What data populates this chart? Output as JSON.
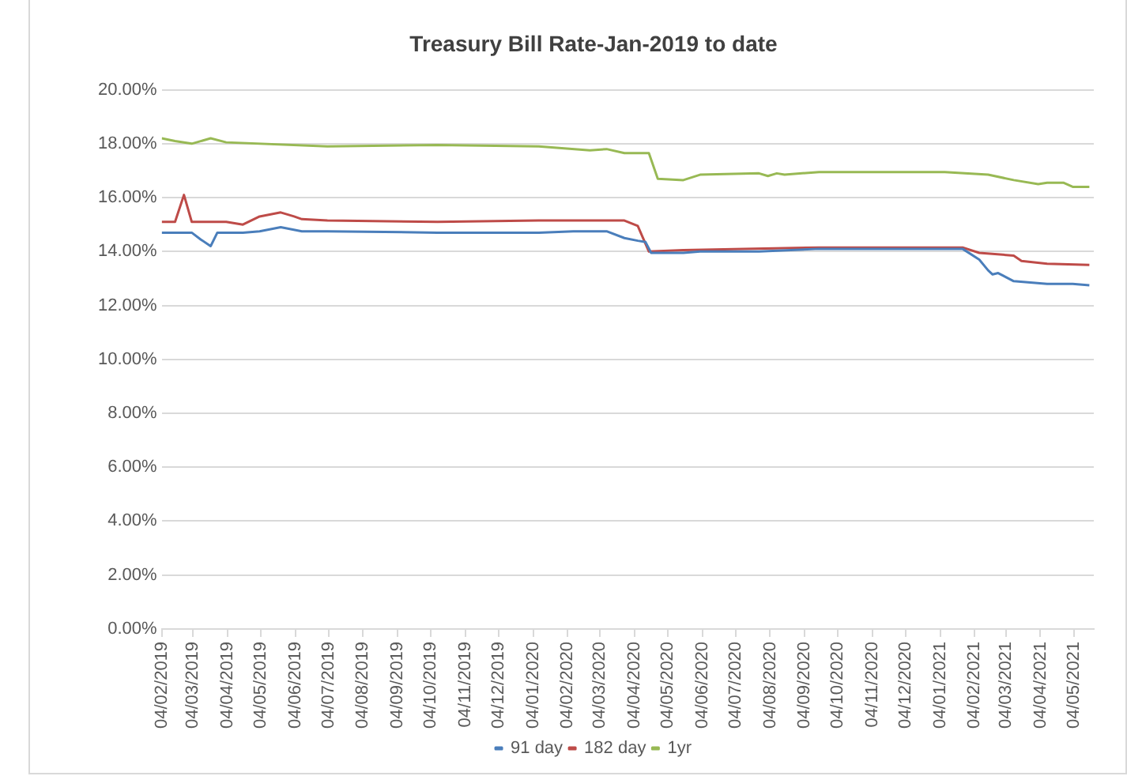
{
  "chart_data": {
    "type": "line",
    "title": "Treasury Bill Rate-Jan-2019 to date",
    "legend": "bottom",
    "grid": "y",
    "marker": "none",
    "line_style": "solid",
    "xlim": [
      "2019-02-04",
      "2021-05-22"
    ],
    "xticks": [
      {
        "value": "2019-02-04",
        "label": "04/02/2019"
      },
      {
        "value": "2019-03-04",
        "label": "04/03/2019"
      },
      {
        "value": "2019-04-04",
        "label": "04/04/2019"
      },
      {
        "value": "2019-05-04",
        "label": "04/05/2019"
      },
      {
        "value": "2019-06-04",
        "label": "04/06/2019"
      },
      {
        "value": "2019-07-04",
        "label": "04/07/2019"
      },
      {
        "value": "2019-08-04",
        "label": "04/08/2019"
      },
      {
        "value": "2019-09-04",
        "label": "04/09/2019"
      },
      {
        "value": "2019-10-04",
        "label": "04/10/2019"
      },
      {
        "value": "2019-11-04",
        "label": "04/11/2019"
      },
      {
        "value": "2019-12-04",
        "label": "04/12/2019"
      },
      {
        "value": "2020-01-04",
        "label": "04/01/2020"
      },
      {
        "value": "2020-02-04",
        "label": "04/02/2020"
      },
      {
        "value": "2020-03-04",
        "label": "04/03/2020"
      },
      {
        "value": "2020-04-04",
        "label": "04/04/2020"
      },
      {
        "value": "2020-05-04",
        "label": "04/05/2020"
      },
      {
        "value": "2020-06-04",
        "label": "04/06/2020"
      },
      {
        "value": "2020-07-04",
        "label": "04/07/2020"
      },
      {
        "value": "2020-08-04",
        "label": "04/08/2020"
      },
      {
        "value": "2020-09-04",
        "label": "04/09/2020"
      },
      {
        "value": "2020-10-04",
        "label": "04/10/2020"
      },
      {
        "value": "2020-11-04",
        "label": "04/11/2020"
      },
      {
        "value": "2020-12-04",
        "label": "04/12/2020"
      },
      {
        "value": "2021-01-04",
        "label": "04/01/2021"
      },
      {
        "value": "2021-02-04",
        "label": "04/02/2021"
      },
      {
        "value": "2021-03-04",
        "label": "04/03/2021"
      },
      {
        "value": "2021-04-04",
        "label": "04/04/2021"
      },
      {
        "value": "2021-05-04",
        "label": "04/05/2021"
      }
    ],
    "ylim": [
      0,
      20
    ],
    "yticks": [
      {
        "value": 0,
        "label": "0.00%"
      },
      {
        "value": 2,
        "label": "2.00%"
      },
      {
        "value": 4,
        "label": "4.00%"
      },
      {
        "value": 6,
        "label": "6.00%"
      },
      {
        "value": 8,
        "label": "8.00%"
      },
      {
        "value": 10,
        "label": "10.00%"
      },
      {
        "value": 12,
        "label": "12.00%"
      },
      {
        "value": 14,
        "label": "14.00%"
      },
      {
        "value": 16,
        "label": "16.00%"
      },
      {
        "value": 18,
        "label": "18.00%"
      },
      {
        "value": 20,
        "label": "20.00%"
      }
    ],
    "series": [
      {
        "name": "91 day",
        "color": "#4a7ebb",
        "x": [
          "2019-02-04",
          "2019-03-03",
          "2019-03-11",
          "2019-03-20",
          "2019-03-26",
          "2019-04-18",
          "2019-05-03",
          "2019-05-22",
          "2019-06-10",
          "2019-07-03",
          "2019-10-10",
          "2020-01-09",
          "2020-02-09",
          "2020-03-10",
          "2020-03-26",
          "2020-04-07",
          "2020-04-14",
          "2020-04-19",
          "2020-05-18",
          "2020-06-02",
          "2020-07-25",
          "2020-09-17",
          "2021-01-08",
          "2021-01-24",
          "2021-02-08",
          "2021-02-16",
          "2021-02-20",
          "2021-02-25",
          "2021-03-11",
          "2021-04-10",
          "2021-05-03",
          "2021-05-18"
        ],
        "values": [
          14.7,
          14.7,
          14.45,
          14.2,
          14.7,
          14.7,
          14.75,
          14.9,
          14.75,
          14.75,
          14.7,
          14.7,
          14.75,
          14.75,
          14.5,
          14.4,
          14.35,
          13.95,
          13.95,
          14.0,
          14.0,
          14.1,
          14.1,
          14.1,
          13.7,
          13.3,
          13.15,
          13.2,
          12.9,
          12.8,
          12.8,
          12.75
        ]
      },
      {
        "name": "182 day",
        "color": "#be4b48",
        "x": [
          "2019-02-04",
          "2019-02-16",
          "2019-02-24",
          "2019-03-03",
          "2019-04-03",
          "2019-04-18",
          "2019-05-03",
          "2019-05-22",
          "2019-06-03",
          "2019-06-10",
          "2019-07-03",
          "2019-10-10",
          "2020-01-09",
          "2020-03-10",
          "2020-03-26",
          "2020-04-07",
          "2020-04-17",
          "2020-05-18",
          "2020-09-17",
          "2021-01-24",
          "2021-02-08",
          "2021-03-11",
          "2021-03-18",
          "2021-04-10",
          "2021-05-18"
        ],
        "values": [
          15.1,
          15.1,
          16.1,
          15.1,
          15.1,
          15.0,
          15.3,
          15.45,
          15.3,
          15.2,
          15.15,
          15.1,
          15.15,
          15.15,
          15.15,
          14.95,
          14.0,
          14.05,
          14.15,
          14.15,
          13.95,
          13.85,
          13.65,
          13.55,
          13.5
        ]
      },
      {
        "name": "1yr",
        "color": "#98b954",
        "x": [
          "2019-02-04",
          "2019-02-16",
          "2019-03-03",
          "2019-03-20",
          "2019-04-03",
          "2019-07-03",
          "2019-10-10",
          "2020-01-09",
          "2020-01-25",
          "2020-02-24",
          "2020-03-10",
          "2020-03-26",
          "2020-04-17",
          "2020-04-25",
          "2020-05-18",
          "2020-06-02",
          "2020-07-25",
          "2020-08-02",
          "2020-08-10",
          "2020-08-17",
          "2020-09-17",
          "2021-01-08",
          "2021-02-16",
          "2021-03-11",
          "2021-04-02",
          "2021-04-10",
          "2021-04-25",
          "2021-05-03",
          "2021-05-18"
        ],
        "values": [
          18.2,
          18.1,
          18.0,
          18.2,
          18.05,
          17.9,
          17.95,
          17.9,
          17.85,
          17.75,
          17.8,
          17.65,
          17.65,
          16.7,
          16.65,
          16.85,
          16.9,
          16.8,
          16.9,
          16.85,
          16.95,
          16.95,
          16.85,
          16.65,
          16.5,
          16.55,
          16.55,
          16.4,
          16.4
        ]
      }
    ]
  }
}
